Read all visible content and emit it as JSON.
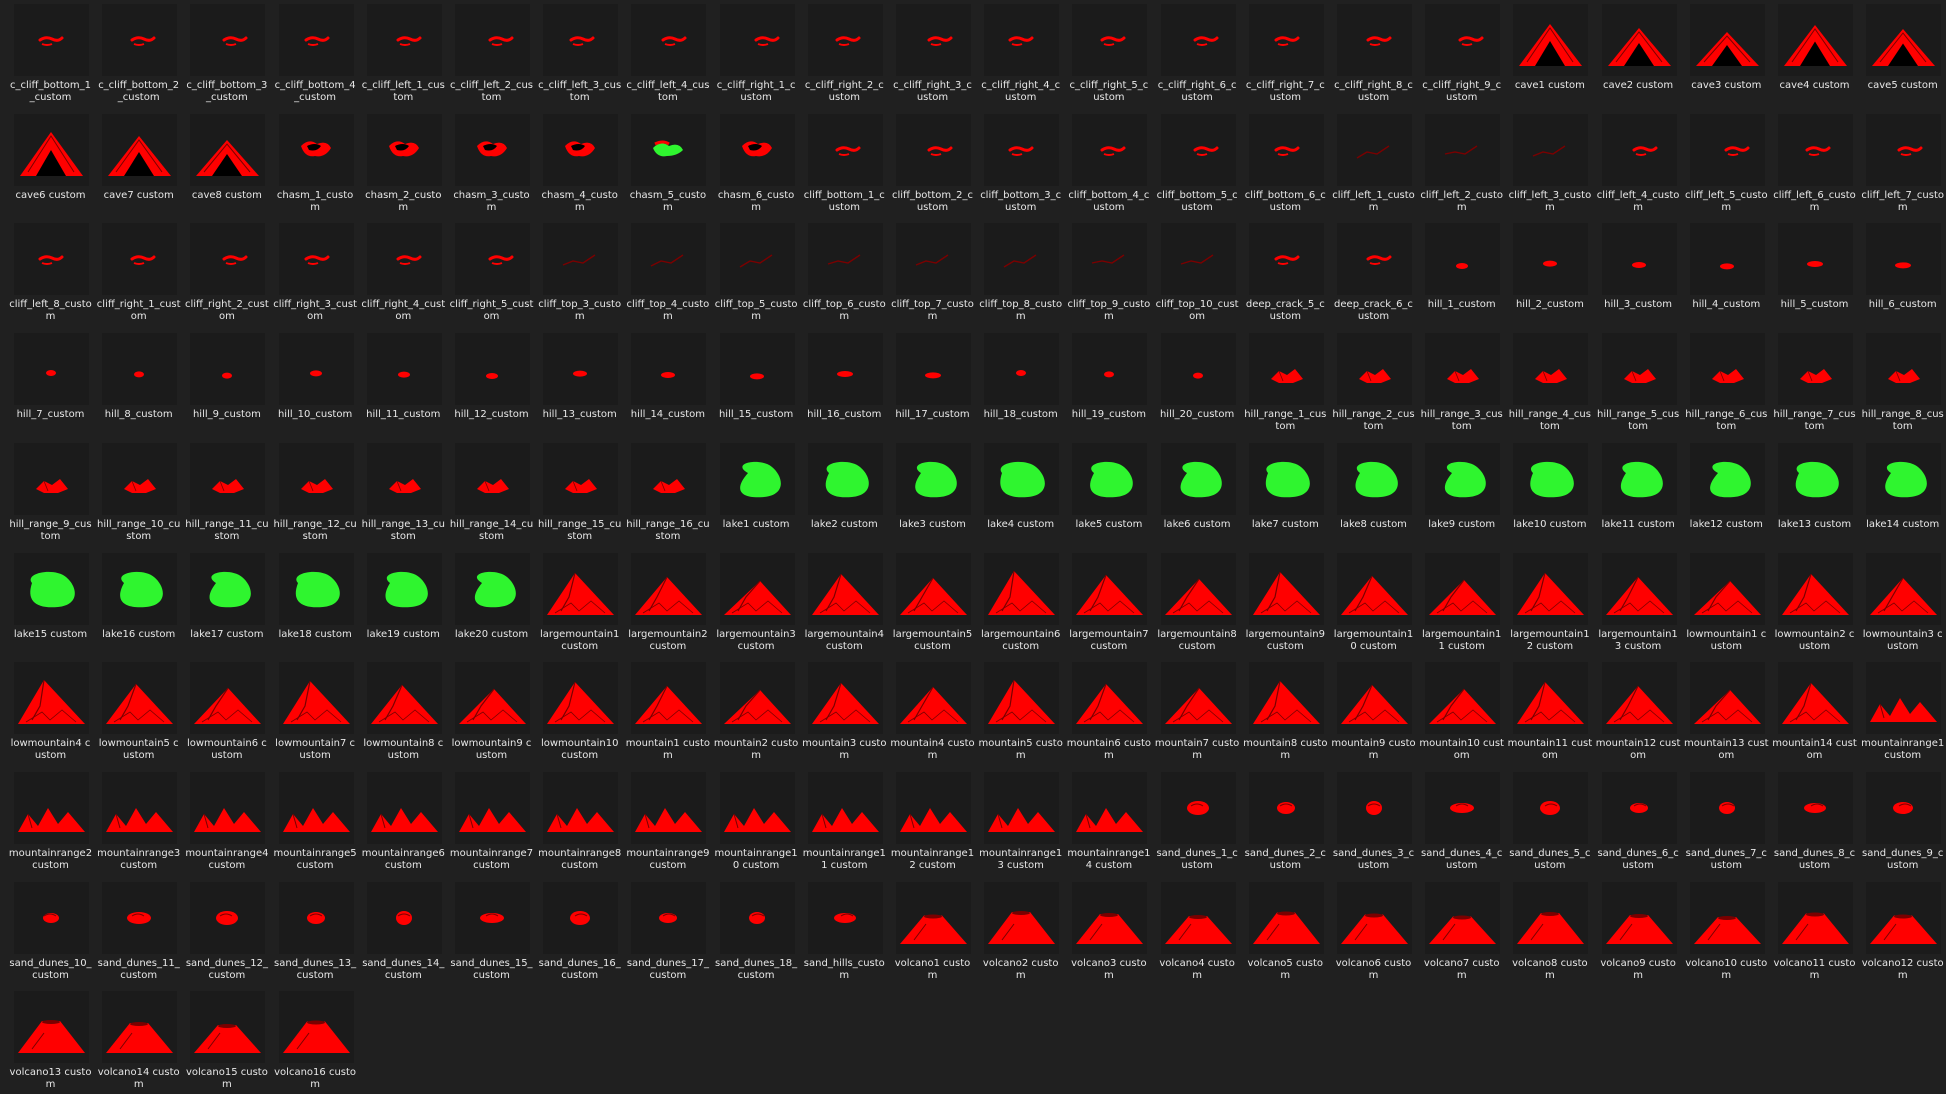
{
  "view": "File explorer large-icons view of custom terrain stamp thumbnails",
  "colors": {
    "background": "#202020",
    "terrain": "#ff0000",
    "terrain_dark": "#7a0000",
    "lake": "#2ff52f",
    "label": "#e8e8e8"
  },
  "items": [
    {
      "label": "c_cliff_bottom_1_custom",
      "icon": "cliff-icon"
    },
    {
      "label": "c_cliff_bottom_2_custom",
      "icon": "cliff-icon"
    },
    {
      "label": "c_cliff_bottom_3_custom",
      "icon": "cliff-icon"
    },
    {
      "label": "c_cliff_bottom_4_custom",
      "icon": "cliff-icon"
    },
    {
      "label": "c_cliff_left_1_custom",
      "icon": "cliff-icon"
    },
    {
      "label": "c_cliff_left_2_custom",
      "icon": "cliff-icon"
    },
    {
      "label": "c_cliff_left_3_custom",
      "icon": "cliff-icon"
    },
    {
      "label": "c_cliff_left_4_custom",
      "icon": "cliff-icon"
    },
    {
      "label": "c_cliff_right_1_custom",
      "icon": "cliff-icon"
    },
    {
      "label": "c_cliff_right_2_custom",
      "icon": "cliff-icon"
    },
    {
      "label": "c_cliff_right_3_custom",
      "icon": "cliff-icon"
    },
    {
      "label": "c_cliff_right_4_custom",
      "icon": "cliff-icon"
    },
    {
      "label": "c_cliff_right_5_custom",
      "icon": "cliff-icon"
    },
    {
      "label": "c_cliff_right_6_custom",
      "icon": "cliff-icon"
    },
    {
      "label": "c_cliff_right_7_custom",
      "icon": "cliff-icon"
    },
    {
      "label": "c_cliff_right_8_custom",
      "icon": "cliff-icon"
    },
    {
      "label": "c_cliff_right_9_custom",
      "icon": "cliff-icon"
    },
    {
      "label": "cave1 custom",
      "icon": "cave-icon"
    },
    {
      "label": "cave2 custom",
      "icon": "cave-icon"
    },
    {
      "label": "cave3 custom",
      "icon": "cave-icon"
    },
    {
      "label": "cave4 custom",
      "icon": "cave-icon"
    },
    {
      "label": "cave5 custom",
      "icon": "cave-icon"
    },
    {
      "label": "cave6 custom",
      "icon": "cave-icon"
    },
    {
      "label": "cave7 custom",
      "icon": "cave-icon"
    },
    {
      "label": "cave8 custom",
      "icon": "cave-icon"
    },
    {
      "label": "chasm_1_custom",
      "icon": "chasm-icon"
    },
    {
      "label": "chasm_2_custom",
      "icon": "chasm-icon"
    },
    {
      "label": "chasm_3_custom",
      "icon": "chasm-icon"
    },
    {
      "label": "chasm_4_custom",
      "icon": "chasm-icon"
    },
    {
      "label": "chasm_5_custom",
      "icon": "chasm-green-icon"
    },
    {
      "label": "chasm_6_custom",
      "icon": "chasm-icon"
    },
    {
      "label": "cliff_bottom_1_custom",
      "icon": "cliff-icon"
    },
    {
      "label": "cliff_bottom_2_custom",
      "icon": "cliff-icon"
    },
    {
      "label": "cliff_bottom_3_custom",
      "icon": "cliff-icon"
    },
    {
      "label": "cliff_bottom_4_custom",
      "icon": "cliff-icon"
    },
    {
      "label": "cliff_bottom_5_custom",
      "icon": "cliff-icon"
    },
    {
      "label": "cliff_bottom_6_custom",
      "icon": "cliff-icon"
    },
    {
      "label": "cliff_left_1_custom",
      "icon": "crack-icon"
    },
    {
      "label": "cliff_left_2_custom",
      "icon": "crack-icon"
    },
    {
      "label": "cliff_left_3_custom",
      "icon": "crack-icon"
    },
    {
      "label": "cliff_left_4_custom",
      "icon": "cliff-icon"
    },
    {
      "label": "cliff_left_5_custom",
      "icon": "cliff-icon"
    },
    {
      "label": "cliff_left_6_custom",
      "icon": "cliff-icon"
    },
    {
      "label": "cliff_left_7_custom",
      "icon": "cliff-icon"
    },
    {
      "label": "cliff_left_8_custom",
      "icon": "cliff-icon"
    },
    {
      "label": "cliff_right_1_custom",
      "icon": "cliff-icon"
    },
    {
      "label": "cliff_right_2_custom",
      "icon": "cliff-icon"
    },
    {
      "label": "cliff_right_3_custom",
      "icon": "cliff-icon"
    },
    {
      "label": "cliff_right_4_custom",
      "icon": "cliff-icon"
    },
    {
      "label": "cliff_right_5_custom",
      "icon": "cliff-icon"
    },
    {
      "label": "cliff_top_3_custom",
      "icon": "crack-icon"
    },
    {
      "label": "cliff_top_4_custom",
      "icon": "crack-icon"
    },
    {
      "label": "cliff_top_5_custom",
      "icon": "crack-icon"
    },
    {
      "label": "cliff_top_6_custom",
      "icon": "crack-icon"
    },
    {
      "label": "cliff_top_7_custom",
      "icon": "crack-icon"
    },
    {
      "label": "cliff_top_8_custom",
      "icon": "crack-icon"
    },
    {
      "label": "cliff_top_9_custom",
      "icon": "crack-icon"
    },
    {
      "label": "cliff_top_10_custom",
      "icon": "crack-icon"
    },
    {
      "label": "deep_crack_5_custom",
      "icon": "cliff-icon"
    },
    {
      "label": "deep_crack_6_custom",
      "icon": "cliff-icon"
    },
    {
      "label": "hill_1_custom",
      "icon": "hill-icon"
    },
    {
      "label": "hill_2_custom",
      "icon": "hill-icon"
    },
    {
      "label": "hill_3_custom",
      "icon": "hill-icon"
    },
    {
      "label": "hill_4_custom",
      "icon": "hill-icon"
    },
    {
      "label": "hill_5_custom",
      "icon": "hill-icon"
    },
    {
      "label": "hill_6_custom",
      "icon": "hill-icon"
    },
    {
      "label": "hill_7_custom",
      "icon": "hill-icon"
    },
    {
      "label": "hill_8_custom",
      "icon": "hill-icon"
    },
    {
      "label": "hill_9_custom",
      "icon": "hill-icon"
    },
    {
      "label": "hill_10_custom",
      "icon": "hill-icon"
    },
    {
      "label": "hill_11_custom",
      "icon": "hill-icon"
    },
    {
      "label": "hill_12_custom",
      "icon": "hill-icon"
    },
    {
      "label": "hill_13_custom",
      "icon": "hill-icon"
    },
    {
      "label": "hill_14_custom",
      "icon": "hill-icon"
    },
    {
      "label": "hill_15_custom",
      "icon": "hill-icon"
    },
    {
      "label": "hill_16_custom",
      "icon": "hill-icon"
    },
    {
      "label": "hill_17_custom",
      "icon": "hill-icon"
    },
    {
      "label": "hill_18_custom",
      "icon": "hill-icon"
    },
    {
      "label": "hill_19_custom",
      "icon": "hill-icon"
    },
    {
      "label": "hill_20_custom",
      "icon": "hill-icon"
    },
    {
      "label": "hill_range_1_custom",
      "icon": "hill-range-icon"
    },
    {
      "label": "hill_range_2_custom",
      "icon": "hill-range-icon"
    },
    {
      "label": "hill_range_3_custom",
      "icon": "hill-range-icon"
    },
    {
      "label": "hill_range_4_custom",
      "icon": "hill-range-icon"
    },
    {
      "label": "hill_range_5_custom",
      "icon": "hill-range-icon"
    },
    {
      "label": "hill_range_6_custom",
      "icon": "hill-range-icon"
    },
    {
      "label": "hill_range_7_custom",
      "icon": "hill-range-icon"
    },
    {
      "label": "hill_range_8_custom",
      "icon": "hill-range-icon"
    },
    {
      "label": "hill_range_9_custom",
      "icon": "hill-range-icon"
    },
    {
      "label": "hill_range_10_custom",
      "icon": "hill-range-icon"
    },
    {
      "label": "hill_range_11_custom",
      "icon": "hill-range-icon"
    },
    {
      "label": "hill_range_12_custom",
      "icon": "hill-range-icon"
    },
    {
      "label": "hill_range_13_custom",
      "icon": "hill-range-icon"
    },
    {
      "label": "hill_range_14_custom",
      "icon": "hill-range-icon"
    },
    {
      "label": "hill_range_15_custom",
      "icon": "hill-range-icon"
    },
    {
      "label": "hill_range_16_custom",
      "icon": "hill-range-icon"
    },
    {
      "label": "lake1 custom",
      "icon": "lake-icon"
    },
    {
      "label": "lake2 custom",
      "icon": "lake-icon"
    },
    {
      "label": "lake3 custom",
      "icon": "lake-icon"
    },
    {
      "label": "lake4 custom",
      "icon": "lake-icon"
    },
    {
      "label": "lake5 custom",
      "icon": "lake-icon"
    },
    {
      "label": "lake6 custom",
      "icon": "lake-icon"
    },
    {
      "label": "lake7 custom",
      "icon": "lake-icon"
    },
    {
      "label": "lake8 custom",
      "icon": "lake-icon"
    },
    {
      "label": "lake9 custom",
      "icon": "lake-icon"
    },
    {
      "label": "lake10 custom",
      "icon": "lake-icon"
    },
    {
      "label": "lake11 custom",
      "icon": "lake-icon"
    },
    {
      "label": "lake12 custom",
      "icon": "lake-icon"
    },
    {
      "label": "lake13 custom",
      "icon": "lake-icon"
    },
    {
      "label": "lake14 custom",
      "icon": "lake-icon"
    },
    {
      "label": "lake15 custom",
      "icon": "lake-icon"
    },
    {
      "label": "lake16 custom",
      "icon": "lake-icon"
    },
    {
      "label": "lake17 custom",
      "icon": "lake-icon"
    },
    {
      "label": "lake18 custom",
      "icon": "lake-icon"
    },
    {
      "label": "lake19 custom",
      "icon": "lake-icon"
    },
    {
      "label": "lake20 custom",
      "icon": "lake-icon"
    },
    {
      "label": "largemountain1 custom",
      "icon": "mountain-icon"
    },
    {
      "label": "largemountain2 custom",
      "icon": "mountain-icon"
    },
    {
      "label": "largemountain3 custom",
      "icon": "mountain-icon"
    },
    {
      "label": "largemountain4 custom",
      "icon": "mountain-icon"
    },
    {
      "label": "largemountain5 custom",
      "icon": "mountain-icon"
    },
    {
      "label": "largemountain6 custom",
      "icon": "mountain-icon"
    },
    {
      "label": "largemountain7 custom",
      "icon": "mountain-icon"
    },
    {
      "label": "largemountain8 custom",
      "icon": "mountain-icon"
    },
    {
      "label": "largemountain9 custom",
      "icon": "mountain-icon"
    },
    {
      "label": "largemountain10 custom",
      "icon": "mountain-icon"
    },
    {
      "label": "largemountain11 custom",
      "icon": "mountain-icon"
    },
    {
      "label": "largemountain12 custom",
      "icon": "mountain-icon"
    },
    {
      "label": "largemountain13 custom",
      "icon": "mountain-icon"
    },
    {
      "label": "lowmountain1 custom",
      "icon": "mountain-icon"
    },
    {
      "label": "lowmountain2 custom",
      "icon": "mountain-icon"
    },
    {
      "label": "lowmountain3 custom",
      "icon": "mountain-icon"
    },
    {
      "label": "lowmountain4 custom",
      "icon": "mountain-icon"
    },
    {
      "label": "lowmountain5 custom",
      "icon": "mountain-icon"
    },
    {
      "label": "lowmountain6 custom",
      "icon": "mountain-icon"
    },
    {
      "label": "lowmountain7 custom",
      "icon": "mountain-icon"
    },
    {
      "label": "lowmountain8 custom",
      "icon": "mountain-icon"
    },
    {
      "label": "lowmountain9 custom",
      "icon": "mountain-icon"
    },
    {
      "label": "lowmountain10 custom",
      "icon": "mountain-icon"
    },
    {
      "label": "mountain1 custom",
      "icon": "mountain-icon"
    },
    {
      "label": "mountain2 custom",
      "icon": "mountain-icon"
    },
    {
      "label": "mountain3 custom",
      "icon": "mountain-icon"
    },
    {
      "label": "mountain4 custom",
      "icon": "mountain-icon"
    },
    {
      "label": "mountain5 custom",
      "icon": "mountain-icon"
    },
    {
      "label": "mountain6 custom",
      "icon": "mountain-icon"
    },
    {
      "label": "mountain7 custom",
      "icon": "mountain-icon"
    },
    {
      "label": "mountain8 custom",
      "icon": "mountain-icon"
    },
    {
      "label": "mountain9 custom",
      "icon": "mountain-icon"
    },
    {
      "label": "mountain10 custom",
      "icon": "mountain-icon"
    },
    {
      "label": "mountain11 custom",
      "icon": "mountain-icon"
    },
    {
      "label": "mountain12 custom",
      "icon": "mountain-icon"
    },
    {
      "label": "mountain13 custom",
      "icon": "mountain-icon"
    },
    {
      "label": "mountain14 custom",
      "icon": "mountain-icon"
    },
    {
      "label": "mountainrange1 custom",
      "icon": "mountain-range-icon"
    },
    {
      "label": "mountainrange2 custom",
      "icon": "mountain-range-icon"
    },
    {
      "label": "mountainrange3 custom",
      "icon": "mountain-range-icon"
    },
    {
      "label": "mountainrange4 custom",
      "icon": "mountain-range-icon"
    },
    {
      "label": "mountainrange5 custom",
      "icon": "mountain-range-icon"
    },
    {
      "label": "mountainrange6 custom",
      "icon": "mountain-range-icon"
    },
    {
      "label": "mountainrange7 custom",
      "icon": "mountain-range-icon"
    },
    {
      "label": "mountainrange8 custom",
      "icon": "mountain-range-icon"
    },
    {
      "label": "mountainrange9 custom",
      "icon": "mountain-range-icon"
    },
    {
      "label": "mountainrange10 custom",
      "icon": "mountain-range-icon"
    },
    {
      "label": "mountainrange11 custom",
      "icon": "mountain-range-icon"
    },
    {
      "label": "mountainrange12 custom",
      "icon": "mountain-range-icon"
    },
    {
      "label": "mountainrange13 custom",
      "icon": "mountain-range-icon"
    },
    {
      "label": "mountainrange14 custom",
      "icon": "mountain-range-icon"
    },
    {
      "label": "sand_dunes_1_custom",
      "icon": "dune-icon"
    },
    {
      "label": "sand_dunes_2_custom",
      "icon": "dune-icon"
    },
    {
      "label": "sand_dunes_3_custom",
      "icon": "dune-icon"
    },
    {
      "label": "sand_dunes_4_custom",
      "icon": "dune-icon"
    },
    {
      "label": "sand_dunes_5_custom",
      "icon": "dune-icon"
    },
    {
      "label": "sand_dunes_6_custom",
      "icon": "dune-icon"
    },
    {
      "label": "sand_dunes_7_custom",
      "icon": "dune-icon"
    },
    {
      "label": "sand_dunes_8_custom",
      "icon": "dune-icon"
    },
    {
      "label": "sand_dunes_9_custom",
      "icon": "dune-icon"
    },
    {
      "label": "sand_dunes_10_custom",
      "icon": "dune-icon"
    },
    {
      "label": "sand_dunes_11_custom",
      "icon": "dune-icon"
    },
    {
      "label": "sand_dunes_12_custom",
      "icon": "dune-icon"
    },
    {
      "label": "sand_dunes_13_custom",
      "icon": "dune-icon"
    },
    {
      "label": "sand_dunes_14_custom",
      "icon": "dune-icon"
    },
    {
      "label": "sand_dunes_15_custom",
      "icon": "dune-icon"
    },
    {
      "label": "sand_dunes_16_custom",
      "icon": "dune-icon"
    },
    {
      "label": "sand_dunes_17_custom",
      "icon": "dune-icon"
    },
    {
      "label": "sand_dunes_18_custom",
      "icon": "dune-icon"
    },
    {
      "label": "sand_hills_custom",
      "icon": "dune-icon"
    },
    {
      "label": "volcano1 custom",
      "icon": "volcano-icon"
    },
    {
      "label": "volcano2 custom",
      "icon": "volcano-icon"
    },
    {
      "label": "volcano3 custom",
      "icon": "volcano-icon"
    },
    {
      "label": "volcano4 custom",
      "icon": "volcano-icon"
    },
    {
      "label": "volcano5 custom",
      "icon": "volcano-icon"
    },
    {
      "label": "volcano6 custom",
      "icon": "volcano-icon"
    },
    {
      "label": "volcano7 custom",
      "icon": "volcano-icon"
    },
    {
      "label": "volcano8 custom",
      "icon": "volcano-icon"
    },
    {
      "label": "volcano9 custom",
      "icon": "volcano-icon"
    },
    {
      "label": "volcano10 custom",
      "icon": "volcano-icon"
    },
    {
      "label": "volcano11 custom",
      "icon": "volcano-icon"
    },
    {
      "label": "volcano12 custom",
      "icon": "volcano-icon"
    },
    {
      "label": "volcano13 custom",
      "icon": "volcano-icon"
    },
    {
      "label": "volcano14 custom",
      "icon": "volcano-icon"
    },
    {
      "label": "volcano15 custom",
      "icon": "volcano-icon"
    },
    {
      "label": "volcano16 custom",
      "icon": "volcano-icon"
    }
  ]
}
